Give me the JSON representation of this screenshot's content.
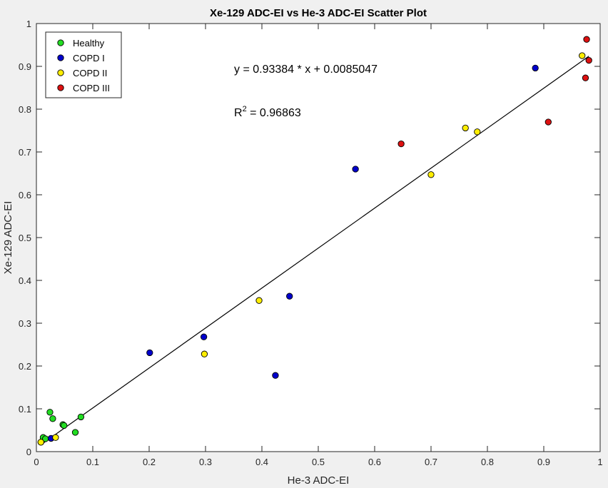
{
  "chart_data": {
    "type": "scatter",
    "title": "Xe-129 ADC-EI vs He-3 ADC-EI Scatter Plot",
    "xlabel": "He-3 ADC-EI",
    "ylabel": "Xe-129 ADC-EI",
    "xlim": [
      0,
      1
    ],
    "ylim": [
      0,
      1
    ],
    "xticks": [
      "0",
      "0.1",
      "0.2",
      "0.3",
      "0.4",
      "0.5",
      "0.6",
      "0.7",
      "0.8",
      "0.9",
      "1"
    ],
    "yticks": [
      "0",
      "0.1",
      "0.2",
      "0.3",
      "0.4",
      "0.5",
      "0.6",
      "0.7",
      "0.8",
      "0.9",
      "1"
    ],
    "grid": false,
    "legend_position": "top-left",
    "series": [
      {
        "name": "Healthy",
        "color": "#22dd22",
        "points": [
          [
            0.008,
            0.022
          ],
          [
            0.012,
            0.033
          ],
          [
            0.016,
            0.03
          ],
          [
            0.024,
            0.092
          ],
          [
            0.029,
            0.077
          ],
          [
            0.047,
            0.063
          ],
          [
            0.049,
            0.061
          ],
          [
            0.069,
            0.045
          ],
          [
            0.079,
            0.081
          ]
        ]
      },
      {
        "name": "COPD I",
        "color": "#0000cc",
        "points": [
          [
            0.026,
            0.031
          ],
          [
            0.201,
            0.231
          ],
          [
            0.297,
            0.268
          ],
          [
            0.424,
            0.178
          ],
          [
            0.449,
            0.363
          ],
          [
            0.566,
            0.66
          ],
          [
            0.885,
            0.896
          ]
        ]
      },
      {
        "name": "COPD II",
        "color": "#ffee00",
        "points": [
          [
            0.008,
            0.022
          ],
          [
            0.034,
            0.033
          ],
          [
            0.298,
            0.228
          ],
          [
            0.395,
            0.353
          ],
          [
            0.7,
            0.647
          ],
          [
            0.761,
            0.756
          ],
          [
            0.782,
            0.747
          ],
          [
            0.968,
            0.925
          ]
        ]
      },
      {
        "name": "COPD III",
        "color": "#dd1111",
        "points": [
          [
            0.647,
            0.719
          ],
          [
            0.908,
            0.77
          ],
          [
            0.974,
            0.873
          ],
          [
            0.976,
            0.963
          ],
          [
            0.98,
            0.914
          ]
        ]
      }
    ],
    "fit_line": {
      "slope": 0.93384,
      "intercept": 0.0085047,
      "x_range": [
        0.008,
        0.98
      ]
    },
    "annotations": {
      "equation": "y = 0.93384 * x + 0.0085047",
      "r2_prefix": "R",
      "r2_sup": "2",
      "r2_value": " = 0.96863"
    }
  }
}
